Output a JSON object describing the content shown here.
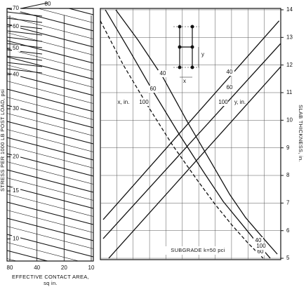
{
  "chart_data": [
    {
      "type": "nomograph",
      "ylabel": "STRESS PER 1000 LB POST LOAD, psi",
      "ylog": true,
      "ylim": [
        8.3,
        70
      ],
      "yticks": [
        10,
        15,
        20,
        30,
        40,
        50,
        60,
        70
      ],
      "xlabel": [
        "EFFECTIVE CONTACT AREA,",
        "sq in."
      ],
      "xlog": true,
      "xlim": [
        80,
        10
      ],
      "xticks": [
        80,
        40,
        20,
        10
      ],
      "top_ticks": [
        80
      ]
    },
    {
      "type": "line",
      "ylabel": "SLAB THICKNESS, in.",
      "xlim": [
        0,
        11
      ],
      "ylim": [
        4.95,
        14.05
      ],
      "yticks": [
        5,
        6,
        7,
        8,
        9,
        10,
        11,
        12,
        13,
        14
      ],
      "grid": true,
      "annotations": [
        "x, in.",
        "y, in.",
        "SUBGRADE  k=50 pci"
      ],
      "inset_labels": [
        "y",
        "x"
      ],
      "series": [
        {
          "name": "40",
          "group": "x",
          "dash": false,
          "color": "#111",
          "x": [
            0.94,
            2.3,
            3.81,
            5.3,
            6.72,
            7.9,
            8.86,
            9.9,
            10.79
          ],
          "values": [
            14,
            12.9,
            11.56,
            9.95,
            8.51,
            7.3,
            6.47,
            5.75,
            5.15
          ]
        },
        {
          "name": "60",
          "group": "x",
          "dash": false,
          "color": "#111",
          "x": [
            0.3,
            1.8,
            3.21,
            4.8,
            6.29,
            7.5,
            8.65,
            9.5,
            10.36
          ],
          "values": [
            14,
            12.5,
            11.05,
            9.5,
            8.13,
            7.05,
            6.22,
            5.6,
            5.0
          ]
        },
        {
          "name": "100",
          "group": "x",
          "dash": true,
          "color": "#111",
          "x": [
            0,
            1.4,
            2.87,
            4.4,
            5.86,
            7.0,
            8.0,
            9.0,
            9.93
          ],
          "values": [
            13.6,
            12.0,
            10.54,
            9.1,
            7.87,
            6.95,
            6.22,
            5.55,
            5.0
          ]
        },
        {
          "name": "40",
          "group": "y",
          "dash": false,
          "color": "#111",
          "x": [
            0.17,
            10.9
          ],
          "values": [
            6.4,
            13.6
          ]
        },
        {
          "name": "60",
          "group": "y",
          "dash": false,
          "color": "#111",
          "x": [
            0.17,
            11
          ],
          "values": [
            5.71,
            12.78
          ]
        },
        {
          "name": "100",
          "group": "y",
          "dash": false,
          "color": "#111",
          "x": [
            0.51,
            11
          ],
          "values": [
            5.0,
            11.94
          ]
        }
      ]
    }
  ]
}
